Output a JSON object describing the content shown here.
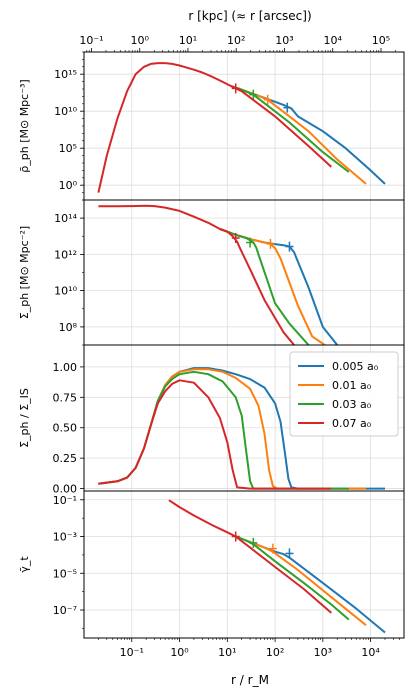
{
  "figure": {
    "top_axis_label": "r [kpc]    (≈ r [arcsec])",
    "bottom_axis_label": "r / r_M",
    "x_range": [
      0.01,
      50000
    ],
    "top_x_range": [
      0.07,
      300000
    ],
    "bottom_ticks": [
      {
        "value": 0.1,
        "label": "10⁻¹"
      },
      {
        "value": 1,
        "label": "10⁰"
      },
      {
        "value": 10,
        "label": "10¹"
      },
      {
        "value": 100,
        "label": "10²"
      },
      {
        "value": 1000,
        "label": "10³"
      },
      {
        "value": 10000,
        "label": "10⁴"
      }
    ],
    "top_ticks": [
      {
        "value": 0.1,
        "label": "10⁻¹"
      },
      {
        "value": 1,
        "label": "10⁰"
      },
      {
        "value": 10,
        "label": "10¹"
      },
      {
        "value": 100,
        "label": "10²"
      },
      {
        "value": 1000,
        "label": "10³"
      },
      {
        "value": 10000,
        "label": "10⁴"
      },
      {
        "value": 100000,
        "label": "10⁵"
      }
    ],
    "colors": [
      "#1f77b4",
      "#ff7f0e",
      "#2ca02c",
      "#d62728"
    ],
    "legend": {
      "placement": "upper-right of panel 3",
      "entries": [
        "0.005 a₀",
        "0.01 a₀",
        "0.03 a₀",
        "0.07 a₀"
      ]
    }
  },
  "chart_data": [
    {
      "type": "line",
      "ylabel": "ρ̄_ph [M⊙ Mpc⁻³]",
      "yscale": "log",
      "ylim": [
        0.01,
        1e+18
      ],
      "grid": true,
      "yticks": [
        {
          "value": 1,
          "label": "10⁰"
        },
        {
          "value": 100000,
          "label": "10⁵"
        },
        {
          "value": 10000000000.0,
          "label": "10¹⁰"
        },
        {
          "value": 1000000000000000.0,
          "label": "10¹⁵"
        }
      ],
      "shared_curve": {
        "x": [
          0.02,
          0.03,
          0.05,
          0.08,
          0.12,
          0.18,
          0.25,
          0.35,
          0.5,
          0.7,
          1.0,
          1.5,
          2,
          3,
          5,
          8,
          12
        ],
        "y": [
          0.1,
          10000.0,
          1000000000.0,
          5000000000000.0,
          1000000000000000.0,
          1e+16,
          2.5e+16,
          3.2e+16,
          3.2e+16,
          2.5e+16,
          1.5e+16,
          7000000000000000.0,
          4000000000000000.0,
          1700000000000000.0,
          400000000000000.0,
          90000000000000.0,
          25000000000000.0
        ]
      },
      "series": [
        {
          "color": "#1f77b4",
          "x": [
            12,
            20,
            40,
            80,
            150,
            220,
            300,
            1000,
            3000,
            10000,
            20000
          ],
          "y": [
            25000000000000.0,
            8000000000000.0,
            1600000000000.0,
            320000000000.0,
            70000000000.0,
            23000000000.0,
            2000000000.0,
            20000000.0,
            100000.0,
            100.0,
            1.5
          ],
          "tick": [
            180,
            30000000000.0
          ]
        },
        {
          "color": "#ff7f0e",
          "x": [
            12,
            20,
            40,
            70,
            120,
            500,
            2000,
            8000
          ],
          "y": [
            25000000000000.0,
            8000000000000.0,
            1600000000000.0,
            350000000000.0,
            25000000000.0,
            20000000.0,
            3000.0,
            1.5
          ],
          "tick": [
            70,
            350000000000.0
          ]
        },
        {
          "color": "#2ca02c",
          "x": [
            12,
            20,
            35,
            50,
            200,
            1000,
            3500
          ],
          "y": [
            25000000000000.0,
            8000000000000.0,
            1700000000000.0,
            300000000000.0,
            300000000.0,
            30000.0,
            60.0
          ],
          "tick": [
            35,
            1700000000000.0
          ]
        },
        {
          "color": "#d62728",
          "x": [
            12,
            15,
            20,
            100,
            500,
            1500
          ],
          "y": [
            25000000000000.0,
            12000000000000.0,
            5000000000000.0,
            2000000000.0,
            200000.0,
            300.0
          ],
          "tick": [
            15,
            12000000000000.0
          ]
        }
      ]
    },
    {
      "type": "line",
      "ylabel": "Σ̄_ph [M⊙ Mpc⁻²]",
      "yscale": "log",
      "ylim": [
        10000000.0,
        1000000000000000.0
      ],
      "grid": true,
      "yticks": [
        {
          "value": 100000000.0,
          "label": "10⁸"
        },
        {
          "value": 10000000000.0,
          "label": "10¹⁰"
        },
        {
          "value": 1000000000000.0,
          "label": "10¹²"
        },
        {
          "value": 100000000000000.0,
          "label": "10¹⁴"
        }
      ],
      "shared_curve": {
        "x": [
          0.02,
          0.05,
          0.1,
          0.2,
          0.3,
          0.5,
          1,
          2,
          4,
          7
        ],
        "y": [
          450000000000000.0,
          450000000000000.0,
          460000000000000.0,
          480000000000000.0,
          460000000000000.0,
          380000000000000.0,
          250000000000000.0,
          120000000000000.0,
          55000000000000.0,
          25000000000000.0
        ]
      },
      "series": [
        {
          "color": "#1f77b4",
          "x": [
            7,
            15,
            30,
            60,
            100,
            150,
            200,
            250,
            300,
            500,
            1000,
            2000
          ],
          "y": [
            25000000000000.0,
            12000000000000.0,
            7000000000000.0,
            4500000000000.0,
            3700000000000.0,
            3200000000000.0,
            2700000000000.0,
            1300000000000.0,
            400000000000.0,
            15000000000.0,
            100000000.0,
            10000000.0
          ],
          "tick": [
            200,
            2700000000000.0
          ]
        },
        {
          "color": "#ff7f0e",
          "x": [
            7,
            15,
            30,
            60,
            80,
            100,
            130,
            300,
            600,
            1100
          ],
          "y": [
            25000000000000.0,
            12000000000000.0,
            7000000000000.0,
            4500000000000.0,
            3800000000000.0,
            2200000000000.0,
            600000000000.0,
            1500000000.0,
            30000000.0,
            10000000.0
          ],
          "tick": [
            80,
            3800000000000.0
          ]
        },
        {
          "color": "#2ca02c",
          "x": [
            7,
            15,
            25,
            30,
            35,
            40,
            45,
            100,
            200,
            500
          ],
          "y": [
            25000000000000.0,
            12000000000000.0,
            8000000000000.0,
            6000000000000.0,
            4500000000000.0,
            2500000000000.0,
            1000000000000.0,
            2000000000.0,
            150000000.0,
            10000000.0
          ],
          "tick": [
            30,
            4500000000000.0
          ]
        },
        {
          "color": "#d62728",
          "x": [
            7,
            10,
            13,
            16,
            18,
            30,
            60,
            150,
            250
          ],
          "y": [
            25000000000000.0,
            18000000000000.0,
            10000000000000.0,
            5000000000000.0,
            2500000000000.0,
            150000000000.0,
            3000000000.0,
            50000000.0,
            10000000.0
          ],
          "tick": [
            15,
            8000000000000.0
          ]
        }
      ]
    },
    {
      "type": "line",
      "ylabel": "Σ̄_ph / Σ_IS",
      "yscale": "linear",
      "ylim": [
        -0.02,
        1.18
      ],
      "grid": true,
      "yticks": [
        {
          "value": 0,
          "label": "0.00"
        },
        {
          "value": 0.25,
          "label": "0.25"
        },
        {
          "value": 0.5,
          "label": "0.50"
        },
        {
          "value": 0.75,
          "label": "0.75"
        },
        {
          "value": 1.0,
          "label": "1.00"
        }
      ],
      "series": [
        {
          "name": "0.005 a₀",
          "color": "#1f77b4",
          "x": [
            0.02,
            0.05,
            0.08,
            0.12,
            0.18,
            0.25,
            0.35,
            0.5,
            0.7,
            1,
            2,
            4,
            8,
            15,
            30,
            60,
            100,
            130,
            160,
            190,
            220,
            300,
            1000,
            5000,
            20000
          ],
          "y": [
            0.04,
            0.06,
            0.09,
            0.17,
            0.33,
            0.52,
            0.72,
            0.85,
            0.92,
            0.96,
            0.99,
            0.99,
            0.97,
            0.94,
            0.9,
            0.83,
            0.7,
            0.55,
            0.3,
            0.08,
            0.01,
            0,
            0,
            0,
            0
          ]
        },
        {
          "name": "0.01 a₀",
          "color": "#ff7f0e",
          "x": [
            0.02,
            0.05,
            0.08,
            0.12,
            0.18,
            0.25,
            0.35,
            0.5,
            0.7,
            1,
            2,
            4,
            8,
            15,
            30,
            45,
            60,
            75,
            90,
            110,
            300,
            2000,
            8000
          ],
          "y": [
            0.04,
            0.06,
            0.09,
            0.17,
            0.33,
            0.52,
            0.72,
            0.85,
            0.92,
            0.96,
            0.98,
            0.98,
            0.96,
            0.91,
            0.82,
            0.68,
            0.45,
            0.15,
            0.02,
            0,
            0,
            0,
            0
          ]
        },
        {
          "name": "0.03 a₀",
          "color": "#2ca02c",
          "x": [
            0.02,
            0.05,
            0.08,
            0.12,
            0.18,
            0.25,
            0.35,
            0.5,
            0.7,
            1,
            2,
            4,
            8,
            15,
            20,
            25,
            30,
            35,
            100,
            1000,
            3500
          ],
          "y": [
            0.04,
            0.06,
            0.09,
            0.17,
            0.33,
            0.52,
            0.72,
            0.84,
            0.9,
            0.94,
            0.96,
            0.94,
            0.88,
            0.75,
            0.6,
            0.3,
            0.06,
            0,
            0,
            0,
            0
          ]
        },
        {
          "name": "0.07 a₀",
          "color": "#d62728",
          "x": [
            0.02,
            0.05,
            0.08,
            0.12,
            0.18,
            0.25,
            0.35,
            0.5,
            0.7,
            1,
            2,
            4,
            7,
            10,
            13,
            16,
            30,
            100,
            1500
          ],
          "y": [
            0.04,
            0.06,
            0.09,
            0.17,
            0.33,
            0.52,
            0.7,
            0.8,
            0.86,
            0.89,
            0.87,
            0.75,
            0.58,
            0.38,
            0.15,
            0.01,
            0,
            0,
            0
          ]
        }
      ]
    },
    {
      "type": "line",
      "ylabel": "γ̄_t",
      "yscale": "log",
      "ylim": [
        3e-09,
        0.3
      ],
      "grid": true,
      "yticks": [
        {
          "value": 1e-07,
          "label": "10⁻⁷"
        },
        {
          "value": 1e-05,
          "label": "10⁻⁵"
        },
        {
          "value": 0.001,
          "label": "10⁻³"
        },
        {
          "value": 0.1,
          "label": "10⁻¹"
        }
      ],
      "shared_curve": {
        "x": [
          0.6,
          1,
          2,
          5,
          10,
          15
        ],
        "y": [
          0.095,
          0.04,
          0.014,
          0.004,
          0.0017,
          0.001
        ]
      },
      "series": [
        {
          "color": "#1f77b4",
          "x": [
            15,
            30,
            60,
            100,
            150,
            200,
            1000,
            5000,
            20000
          ],
          "y": [
            0.001,
            0.0005,
            0.00025,
            0.00015,
            0.00011,
            7e-05,
            3e-06,
            1.2e-07,
            6e-09
          ],
          "tick": [
            200,
            0.00012
          ]
        },
        {
          "color": "#ff7f0e",
          "x": [
            15,
            30,
            60,
            90,
            300,
            1500,
            8000
          ],
          "y": [
            0.001,
            0.0005,
            0.00025,
            0.00015,
            1.5e-05,
            5e-07,
            1.5e-08
          ],
          "tick": [
            90,
            0.00022
          ]
        },
        {
          "color": "#2ca02c",
          "x": [
            15,
            25,
            35,
            100,
            400,
            1500,
            3500
          ],
          "y": [
            0.001,
            0.0006,
            0.00038,
            4.5e-05,
            3e-06,
            2e-07,
            3e-08
          ],
          "tick": [
            35,
            0.00045
          ]
        },
        {
          "color": "#d62728",
          "x": [
            15,
            30,
            100,
            400,
            1500
          ],
          "y": [
            0.001,
            0.00025,
            2.2e-05,
            1.4e-06,
            7e-08
          ],
          "tick": [
            15,
            0.001
          ]
        }
      ]
    }
  ]
}
